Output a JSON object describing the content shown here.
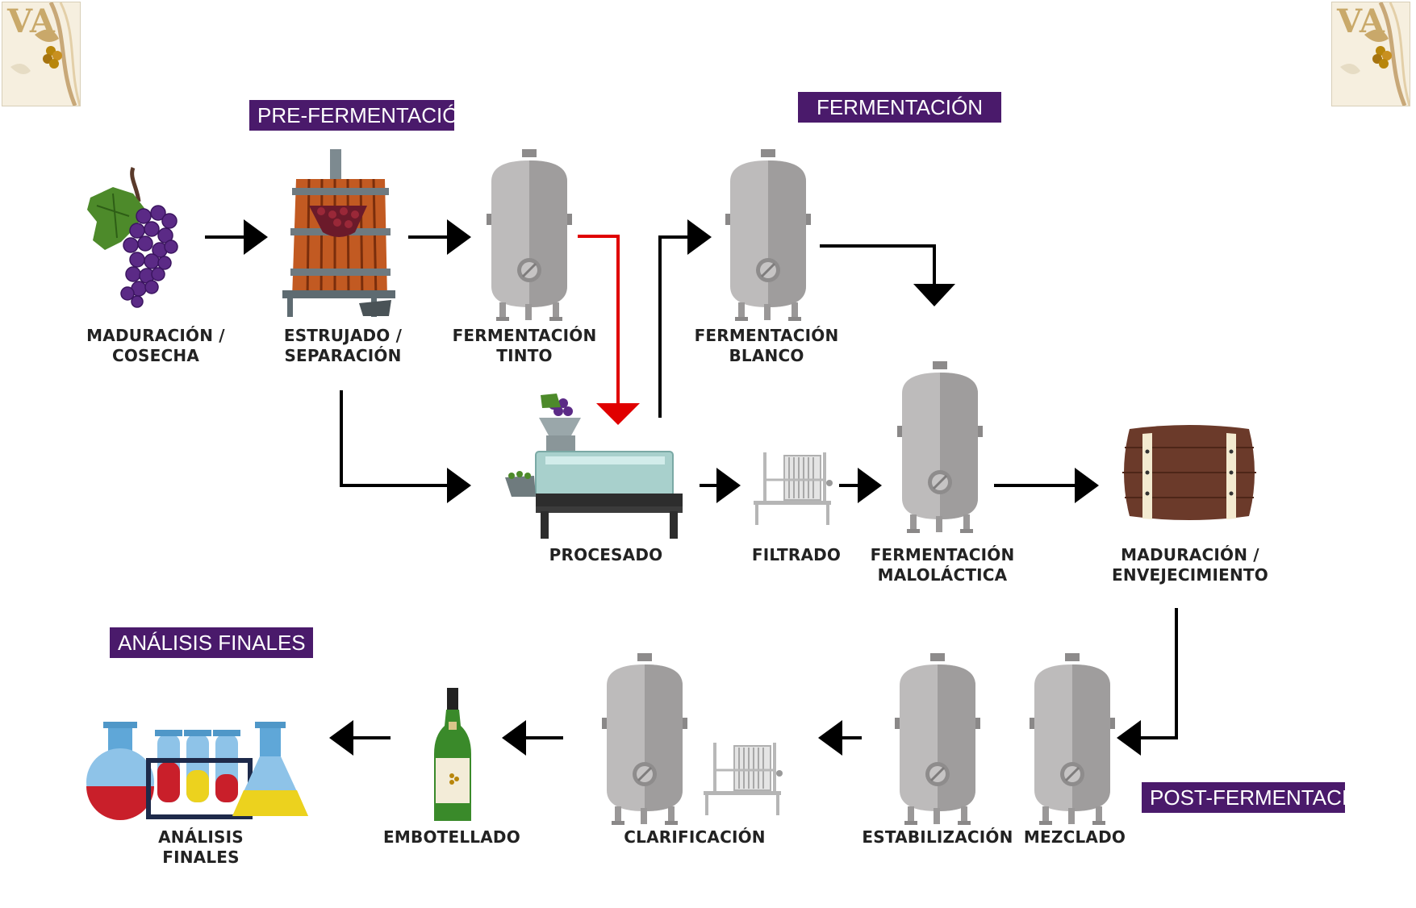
{
  "logo": {
    "text": "VA"
  },
  "sections": {
    "pre_fermentacion": "PRE-FERMENTACIÓN",
    "fermentacion": "FERMENTACIÓN",
    "analisis_finales": "ANÁLISIS FINALES",
    "post_fermentacion": "POST-FERMENTACIÓN"
  },
  "steps": {
    "maduracion_cosecha": [
      "MADURACIÓN /",
      "COSECHA"
    ],
    "estrujado": [
      "ESTRUJADO /",
      "SEPARACIÓN"
    ],
    "fermentacion_tinto": [
      "FERMENTACIÓN",
      "TINTO"
    ],
    "fermentacion_blanco": [
      "FERMENTACIÓN",
      "BLANCO"
    ],
    "procesado": [
      "PROCESADO"
    ],
    "filtrado": [
      "FILTRADO"
    ],
    "fermentacion_malolactica": [
      "FERMENTACIÓN",
      "MALOLÁCTICA"
    ],
    "maduracion_envejecimiento": [
      "MADURACIÓN /",
      "ENVEJECIMIENTO"
    ],
    "analisis": [
      "ANÁLISIS",
      "FINALES"
    ],
    "embotellado": [
      "EMBOTELLADO"
    ],
    "clarificacion": [
      "CLARIFICACIÓN"
    ],
    "estabilizacion": [
      "ESTABILIZACIÓN"
    ],
    "mezclado": [
      "MEZCLADO"
    ]
  },
  "colors": {
    "section_bg": "#4a1a6b",
    "arrow": "#000000",
    "red_arrow": "#e00000",
    "tank": "#b7b5b5",
    "grape": "#5b2a86",
    "barrel": "#6b3a2a"
  },
  "icons": [
    "grapes-icon",
    "wine-press-icon",
    "tank-icon",
    "destemmer-icon",
    "filter-press-icon",
    "barrel-icon",
    "bottle-icon",
    "lab-flasks-icon"
  ]
}
